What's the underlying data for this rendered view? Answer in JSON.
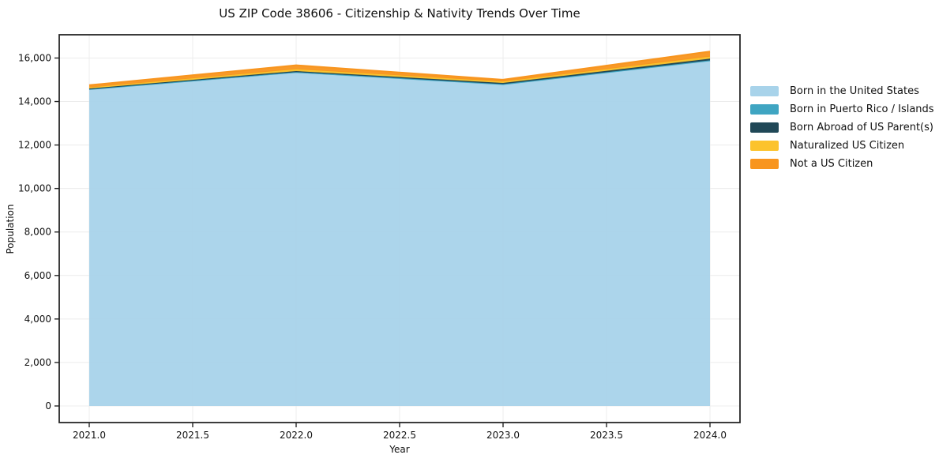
{
  "title": "US ZIP Code 38606 - Citizenship & Nativity Trends Over Time",
  "chart_data": {
    "type": "area",
    "stacked": true,
    "title": "US ZIP Code 38606 - Citizenship & Nativity Trends Over Time",
    "xlabel": "Year",
    "ylabel": "Population",
    "x": [
      2021,
      2022,
      2023,
      2024
    ],
    "series": [
      {
        "name": "Born in the United States",
        "color": "#a8d3ea",
        "values": [
          14560,
          15340,
          14790,
          15870
        ]
      },
      {
        "name": "Born in Puerto Rico / Islands",
        "color": "#3fa5c2",
        "values": [
          10,
          15,
          10,
          25
        ]
      },
      {
        "name": "Born Abroad of US Parent(s)",
        "color": "#204857",
        "values": [
          30,
          45,
          55,
          75
        ]
      },
      {
        "name": "Naturalized US Citizen",
        "color": "#fcc32d",
        "values": [
          45,
          85,
          60,
          95
        ]
      },
      {
        "name": "Not a US Citizen",
        "color": "#f8951f",
        "values": [
          105,
          180,
          85,
          230
        ]
      }
    ],
    "stack_totals": [
      14750,
      15665,
      15000,
      16295
    ],
    "xticks": [
      2021.0,
      2021.5,
      2022.0,
      2022.5,
      2023.0,
      2023.5,
      2024.0
    ],
    "xtick_labels": [
      "2021.0",
      "2021.5",
      "2022.0",
      "2022.5",
      "2023.0",
      "2023.5",
      "2024.0"
    ],
    "yticks": [
      0,
      2000,
      4000,
      6000,
      8000,
      10000,
      12000,
      14000,
      16000
    ],
    "ytick_labels": [
      "0",
      "2,000",
      "4,000",
      "6,000",
      "8,000",
      "10,000",
      "12,000",
      "14,000",
      "16,000"
    ],
    "xlim": [
      2020.855,
      2024.145
    ],
    "ylim": [
      -763,
      17070
    ],
    "grid": true,
    "grid_color": "#ececec",
    "spine_color": "#262626",
    "background": "#ffffff",
    "legend_position": "right-outside"
  }
}
